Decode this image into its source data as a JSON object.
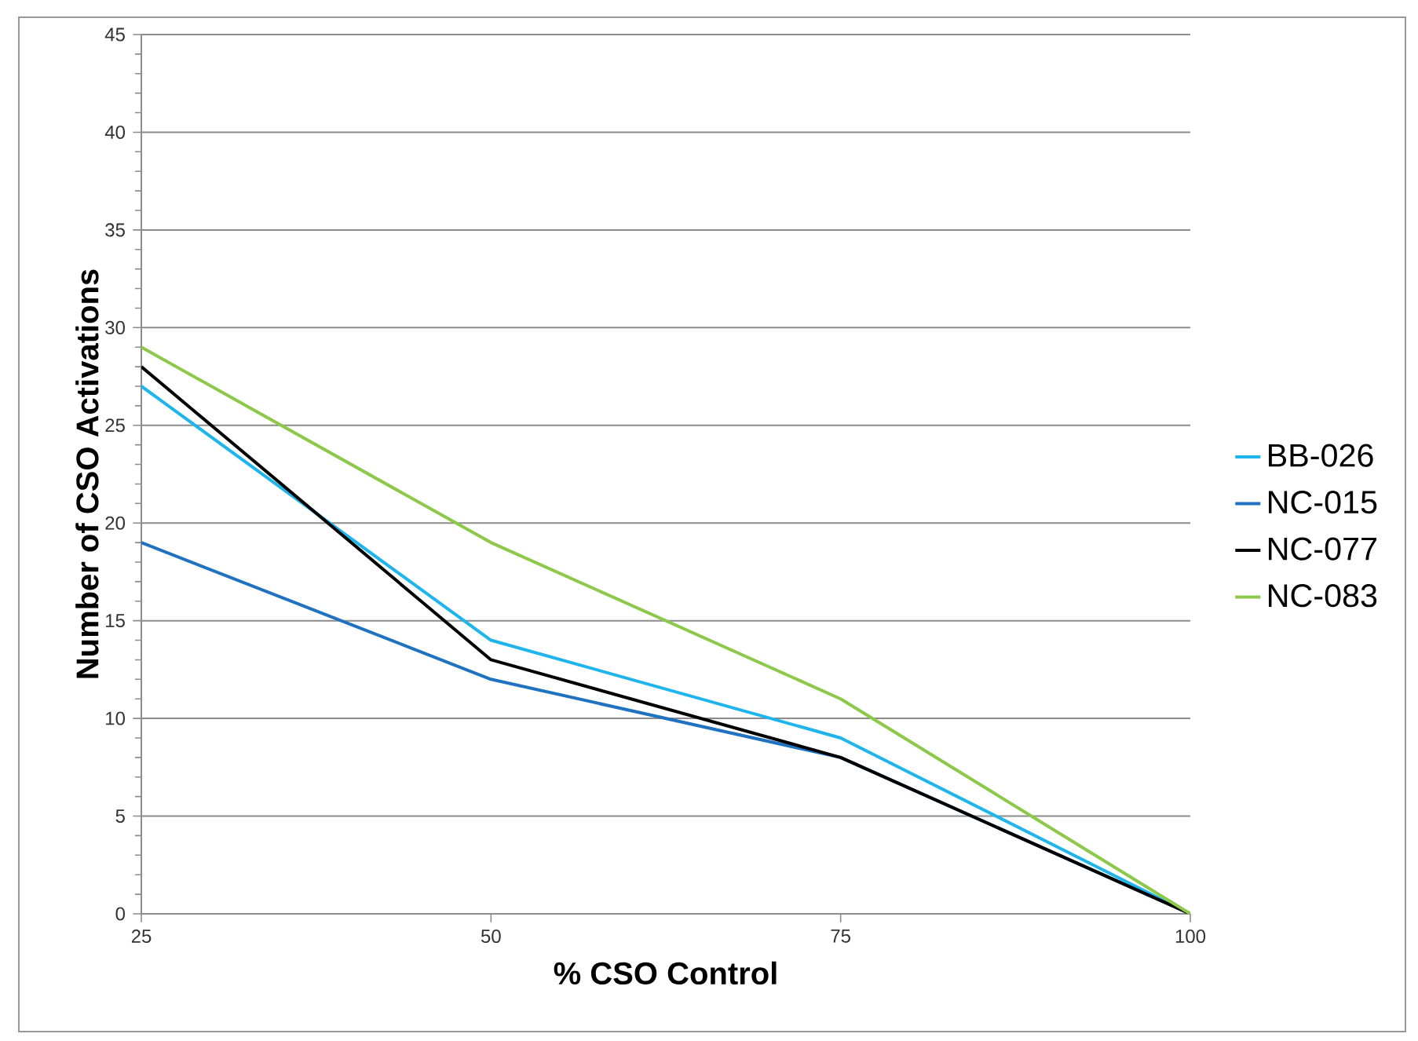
{
  "chart_data": {
    "type": "line",
    "xlabel": "% CSO Control",
    "ylabel": "Number of CSO Activations",
    "x": [
      25,
      50,
      75,
      100
    ],
    "xlim": [
      25,
      100
    ],
    "xticks": [
      25,
      50,
      75,
      100
    ],
    "ylim": [
      0,
      45
    ],
    "yticks": [
      0,
      5,
      10,
      15,
      20,
      25,
      30,
      35,
      40,
      45
    ],
    "grid": "y",
    "legend": "right",
    "series": [
      {
        "name": "BB-026",
        "color": "#1eb4ec",
        "values": [
          27,
          14,
          9,
          0
        ]
      },
      {
        "name": "NC-015",
        "color": "#1f72c0",
        "values": [
          19,
          12,
          8,
          0
        ]
      },
      {
        "name": "NC-077",
        "color": "#000000",
        "values": [
          28,
          13,
          8,
          0
        ]
      },
      {
        "name": "NC-083",
        "color": "#8cc84a",
        "values": [
          29,
          19,
          11,
          0
        ]
      }
    ]
  }
}
